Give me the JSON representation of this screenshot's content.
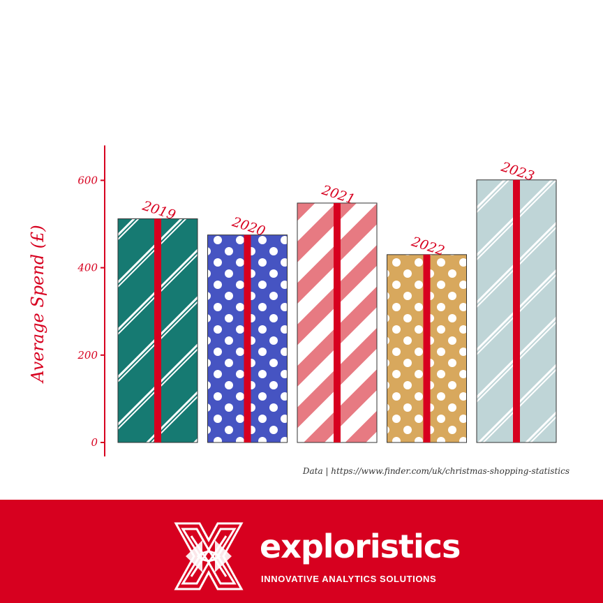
{
  "chart_data": {
    "type": "bar",
    "categories": [
      "2019",
      "2020",
      "2021",
      "2022",
      "2023"
    ],
    "values": [
      512,
      475,
      548,
      430,
      601
    ],
    "ylabel": "Average Spend (£)",
    "ylim": [
      0,
      680
    ],
    "yticks": [
      0,
      200,
      400,
      600
    ],
    "ytick_labels": [
      "0",
      "200",
      "400",
      "600"
    ],
    "grid": false,
    "bar_patterns": [
      "stripes",
      "dots",
      "stripes",
      "dots",
      "stripes"
    ],
    "bar_colors": [
      "#167a72",
      "#4654c2",
      "#e77a82",
      "#d8a85d",
      "#bfd5d7"
    ],
    "ribbon_color": "#d7001f",
    "source": "Data | https://www.finder.com/uk/christmas-shopping-statistics"
  },
  "footer": {
    "brand": "exploristics",
    "tagline": "INNOVATIVE ANALYTICS SOLUTIONS",
    "background": "#d7001f"
  }
}
